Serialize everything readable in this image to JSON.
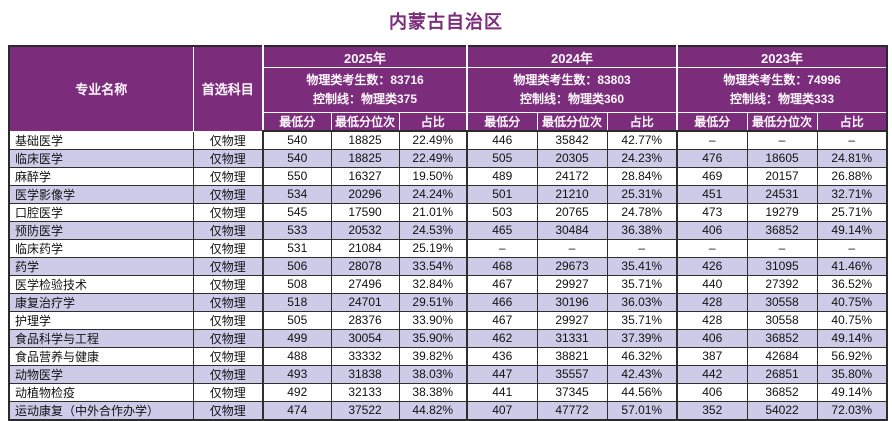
{
  "title": "内蒙古自治区",
  "colors": {
    "header_bg": "#7B2D7B",
    "header_text": "#FDF6FD",
    "alt_row_bg": "#CCCCE9",
    "grid_line": "#2f2f2f",
    "title_text": "#7B2D7B"
  },
  "table": {
    "headers": {
      "major": "专业名称",
      "subject": "首选科目",
      "sub_columns": [
        "最低分",
        "最低分位次",
        "占比"
      ]
    },
    "years": [
      {
        "label": "2025年",
        "candidates": "物理类考生数：83716",
        "control": "控制线：物理类375"
      },
      {
        "label": "2024年",
        "candidates": "物理类考生数：83803",
        "control": "控制线：物理类360"
      },
      {
        "label": "2023年",
        "candidates": "物理类考生数：74996",
        "control": "控制线：物理类333"
      }
    ],
    "rows": [
      {
        "major": "基础医学",
        "subject": "仅物理",
        "y2025": [
          "540",
          "18825",
          "22.49%"
        ],
        "y2024": [
          "446",
          "35842",
          "42.77%"
        ],
        "y2023": [
          "–",
          "–",
          "–"
        ]
      },
      {
        "major": "临床医学",
        "subject": "仅物理",
        "y2025": [
          "540",
          "18825",
          "22.49%"
        ],
        "y2024": [
          "505",
          "20305",
          "24.23%"
        ],
        "y2023": [
          "476",
          "18605",
          "24.81%"
        ]
      },
      {
        "major": "麻醉学",
        "subject": "仅物理",
        "y2025": [
          "550",
          "16327",
          "19.50%"
        ],
        "y2024": [
          "489",
          "24172",
          "28.84%"
        ],
        "y2023": [
          "469",
          "20157",
          "26.88%"
        ]
      },
      {
        "major": "医学影像学",
        "subject": "仅物理",
        "y2025": [
          "534",
          "20296",
          "24.24%"
        ],
        "y2024": [
          "501",
          "21210",
          "25.31%"
        ],
        "y2023": [
          "451",
          "24531",
          "32.71%"
        ]
      },
      {
        "major": "口腔医学",
        "subject": "仅物理",
        "y2025": [
          "545",
          "17590",
          "21.01%"
        ],
        "y2024": [
          "503",
          "20765",
          "24.78%"
        ],
        "y2023": [
          "473",
          "19279",
          "25.71%"
        ]
      },
      {
        "major": "预防医学",
        "subject": "仅物理",
        "y2025": [
          "533",
          "20532",
          "24.53%"
        ],
        "y2024": [
          "465",
          "30484",
          "36.38%"
        ],
        "y2023": [
          "406",
          "36852",
          "49.14%"
        ]
      },
      {
        "major": "临床药学",
        "subject": "仅物理",
        "y2025": [
          "531",
          "21084",
          "25.19%"
        ],
        "y2024": [
          "–",
          "–",
          "–"
        ],
        "y2023": [
          "–",
          "–",
          "–"
        ]
      },
      {
        "major": "药学",
        "subject": "仅物理",
        "y2025": [
          "506",
          "28078",
          "33.54%"
        ],
        "y2024": [
          "468",
          "29673",
          "35.41%"
        ],
        "y2023": [
          "426",
          "31095",
          "41.46%"
        ]
      },
      {
        "major": "医学检验技术",
        "subject": "仅物理",
        "y2025": [
          "508",
          "27496",
          "32.84%"
        ],
        "y2024": [
          "467",
          "29927",
          "35.71%"
        ],
        "y2023": [
          "440",
          "27392",
          "36.52%"
        ]
      },
      {
        "major": "康复治疗学",
        "subject": "仅物理",
        "y2025": [
          "518",
          "24701",
          "29.51%"
        ],
        "y2024": [
          "466",
          "30196",
          "36.03%"
        ],
        "y2023": [
          "428",
          "30558",
          "40.75%"
        ]
      },
      {
        "major": "护理学",
        "subject": "仅物理",
        "y2025": [
          "505",
          "28376",
          "33.90%"
        ],
        "y2024": [
          "467",
          "29927",
          "35.71%"
        ],
        "y2023": [
          "428",
          "30558",
          "40.75%"
        ]
      },
      {
        "major": "食品科学与工程",
        "subject": "仅物理",
        "y2025": [
          "499",
          "30054",
          "35.90%"
        ],
        "y2024": [
          "462",
          "31331",
          "37.39%"
        ],
        "y2023": [
          "406",
          "36852",
          "49.14%"
        ]
      },
      {
        "major": "食品营养与健康",
        "subject": "仅物理",
        "y2025": [
          "488",
          "33332",
          "39.82%"
        ],
        "y2024": [
          "436",
          "38821",
          "46.32%"
        ],
        "y2023": [
          "387",
          "42684",
          "56.92%"
        ]
      },
      {
        "major": "动物医学",
        "subject": "仅物理",
        "y2025": [
          "493",
          "31838",
          "38.03%"
        ],
        "y2024": [
          "447",
          "35557",
          "42.43%"
        ],
        "y2023": [
          "442",
          "26851",
          "35.80%"
        ]
      },
      {
        "major": "动植物检疫",
        "subject": "仅物理",
        "y2025": [
          "492",
          "32133",
          "38.38%"
        ],
        "y2024": [
          "441",
          "37345",
          "44.56%"
        ],
        "y2023": [
          "406",
          "36852",
          "49.14%"
        ]
      },
      {
        "major": "运动康复（中外合作办学）",
        "subject": "仅物理",
        "y2025": [
          "474",
          "37522",
          "44.82%"
        ],
        "y2024": [
          "407",
          "47772",
          "57.01%"
        ],
        "y2023": [
          "352",
          "54022",
          "72.03%"
        ]
      }
    ]
  }
}
